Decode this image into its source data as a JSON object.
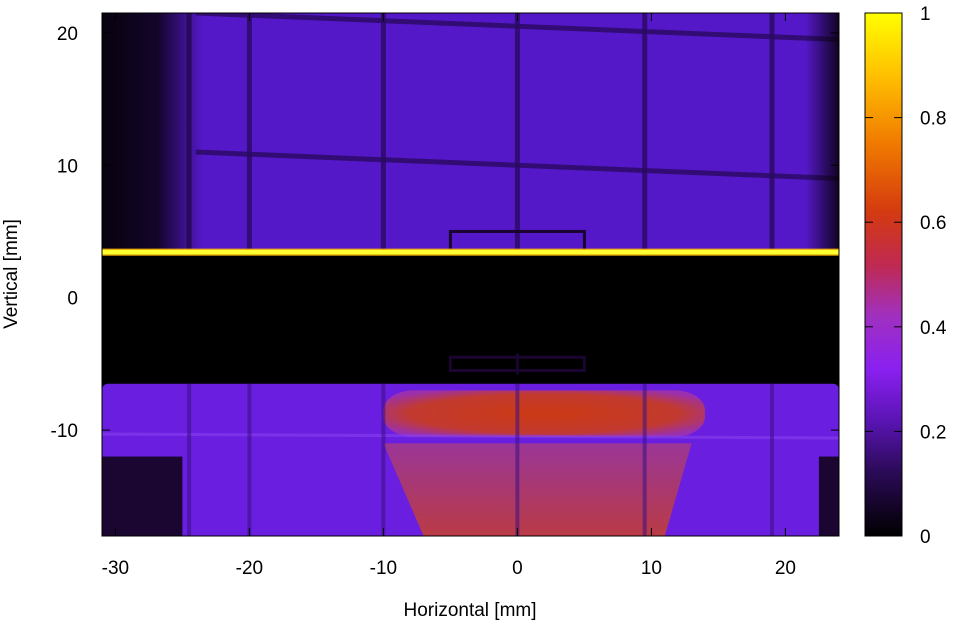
{
  "chart_data": {
    "type": "heatmap",
    "title": "",
    "xlabel": "Horizontal [mm]",
    "ylabel": "Vertical [mm]",
    "xlim": [
      -31,
      24
    ],
    "ylim": [
      -18,
      21.5
    ],
    "xticks": [
      -30,
      -20,
      -10,
      0,
      10,
      20
    ],
    "yticks": [
      -10,
      0,
      10,
      20
    ],
    "colorbar": {
      "range": [
        0,
        1
      ],
      "ticks": [
        0,
        0.2,
        0.4,
        0.6,
        0.8,
        1
      ],
      "palette": [
        "#000000",
        "#3a0f78",
        "#7a1fe6",
        "#a038c8",
        "#d2321e",
        "#ff8a00",
        "#ffff00"
      ]
    },
    "features": {
      "grid_lines_x": [
        -24.5,
        -20,
        -10,
        0,
        9.5,
        19
      ],
      "grid_lines_y": [
        20,
        9.5
      ],
      "bright_line_y": 3.4,
      "dark_band_y": [
        -4.5,
        3.4
      ],
      "upper_region_intensity": 0.2,
      "lower_band_y": [
        -18,
        -6.5
      ],
      "hot_region": {
        "x": [
          -10,
          14
        ],
        "y": [
          -10.5,
          -7
        ],
        "intensity": 0.55
      },
      "lower_hot_region": {
        "x": [
          -10,
          11
        ],
        "y": [
          -18,
          -11
        ],
        "intensity": 0.45
      },
      "small_rect_top": {
        "x": [
          -5,
          5
        ],
        "y": [
          3.5,
          5
        ]
      },
      "small_rect_bottom": {
        "x": [
          -5,
          5
        ],
        "y": [
          -5.5,
          -4.5
        ]
      }
    }
  }
}
